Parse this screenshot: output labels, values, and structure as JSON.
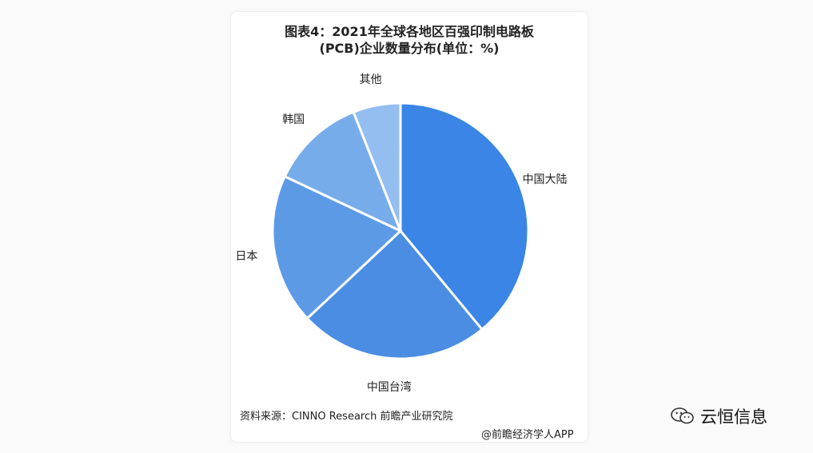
{
  "title_line1": "图表4：2021年全球各地区百强印制电路板",
  "title_line2": "(PCB)企业数量分布(单位：%)",
  "source": "资料来源：CINNO Research 前瞻产业研究院",
  "footer": "@前瞻经济学人APP",
  "wechat_account": "云恒信息",
  "colors": {
    "mainland": "#3a85e6",
    "taiwan": "#4a8de3",
    "japan": "#5c9ae6",
    "korea": "#77aceb",
    "other": "#94bef0"
  },
  "chart_data": {
    "type": "pie",
    "slices": [
      {
        "name": "中国大陆",
        "value": 39
      },
      {
        "name": "中国台湾",
        "value": 24
      },
      {
        "name": "日本",
        "value": 19
      },
      {
        "name": "韩国",
        "value": 12
      },
      {
        "name": "其他",
        "value": 6
      }
    ]
  }
}
